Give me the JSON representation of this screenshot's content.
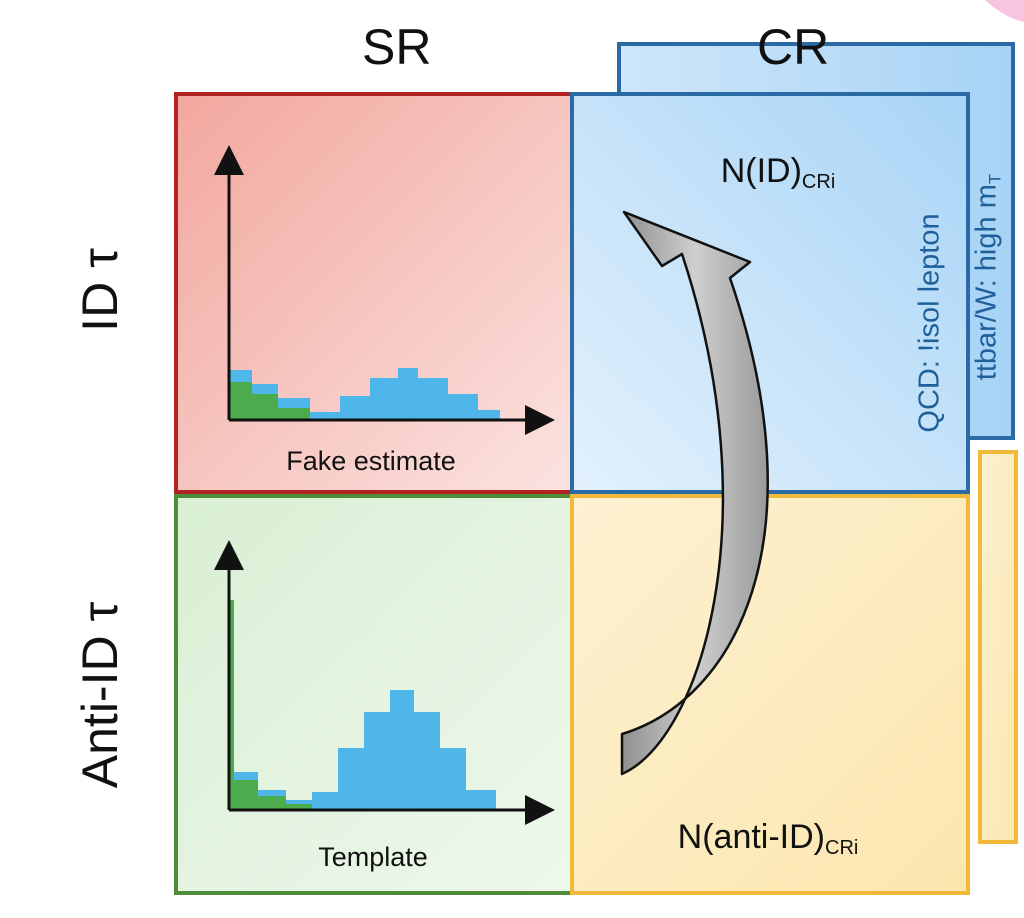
{
  "columns": {
    "sr": "SR",
    "cr": "CR"
  },
  "rows": {
    "id": "ID τ",
    "anti_id": "Anti-ID τ"
  },
  "panels": {
    "sr_id": {
      "label": "Fake estimate"
    },
    "sr_anti": {
      "label": "Template"
    },
    "cr_id": {
      "count_main": "N(ID)",
      "count_sub": "CRi"
    },
    "cr_anti": {
      "count_main": "N(anti-ID)",
      "count_sub": "CRi"
    }
  },
  "side_labels": {
    "qcd": "QCD: !isol lepton",
    "ttbar_main": "ttbar/W: high m",
    "ttbar_sub": "T"
  },
  "colors": {
    "sr_id_border": "#b22222",
    "sr_anti_border": "#4e8c3a",
    "cr_id_border": "#2a6aa5",
    "cr_anti_border": "#f0b93a",
    "hist_green": "#4cab4c",
    "hist_blue": "#4fb6ea",
    "arrow_fill": "#a8a8a8"
  }
}
